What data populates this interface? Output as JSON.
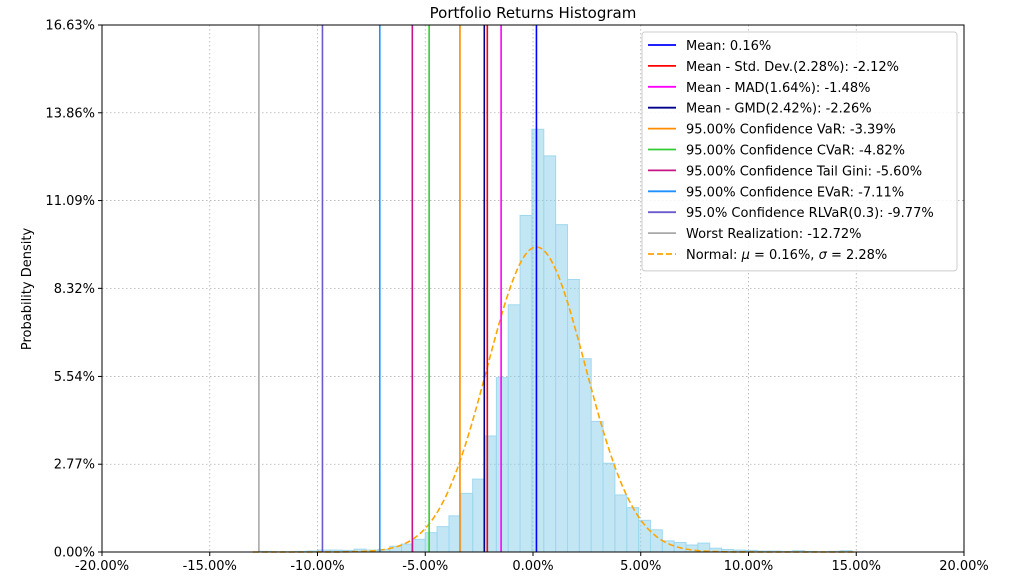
{
  "chart_data": {
    "type": "bar",
    "title": "Portfolio Returns Histogram",
    "xlabel": "",
    "ylabel": "Probability Density",
    "xlim": [
      -0.2,
      0.2
    ],
    "ylim": [
      0,
      0.1663
    ],
    "grid": true,
    "legend_position": "top-right",
    "x_ticks": [
      -0.2,
      -0.15,
      -0.1,
      -0.05,
      0.0,
      0.05,
      0.1,
      0.15,
      0.2
    ],
    "x_tick_labels": [
      "-20.00%",
      "-15.00%",
      "-10.00%",
      "-5.00%",
      "0.00%",
      "5.00%",
      "10.00%",
      "15.00%",
      "20.00%"
    ],
    "y_ticks": [
      0,
      0.0277,
      0.0554,
      0.0832,
      0.1109,
      0.1386,
      0.1663
    ],
    "y_tick_labels": [
      "0.00%",
      "2.77%",
      "5.54%",
      "8.32%",
      "11.09%",
      "13.86%",
      "16.63%"
    ],
    "histogram": {
      "color": "#87ceeb",
      "edge_color": "#9fd8ee",
      "bin_width": 0.0055,
      "bin_starts": [
        -0.127,
        -0.1215,
        -0.116,
        -0.1105,
        -0.105,
        -0.0995,
        -0.094,
        -0.0885,
        -0.083,
        -0.0775,
        -0.072,
        -0.0665,
        -0.061,
        -0.0555,
        -0.05,
        -0.0445,
        -0.039,
        -0.0335,
        -0.028,
        -0.0225,
        -0.017,
        -0.0115,
        -0.006,
        -0.0005,
        0.005,
        0.0105,
        0.016,
        0.0215,
        0.027,
        0.0325,
        0.038,
        0.0435,
        0.049,
        0.0545,
        0.06,
        0.0655,
        0.071,
        0.0765,
        0.082,
        0.0875,
        0.093,
        0.0985,
        0.104,
        0.1095,
        0.115,
        0.1205,
        0.126,
        0.1315,
        0.137,
        0.1425
      ],
      "densities": [
        0.0002,
        0.0001,
        0.0001,
        0.0002,
        0.0003,
        0.0006,
        0.0006,
        0.0005,
        0.0009,
        0.0006,
        0.0008,
        0.0018,
        0.0025,
        0.004,
        0.0061,
        0.008,
        0.0114,
        0.0185,
        0.023,
        0.0366,
        0.055,
        0.078,
        0.1062,
        0.1334,
        0.125,
        0.1033,
        0.086,
        0.061,
        0.0412,
        0.028,
        0.018,
        0.014,
        0.01,
        0.007,
        0.0035,
        0.003,
        0.0022,
        0.0028,
        0.0012,
        0.0008,
        0.0006,
        0.0005,
        0.0003,
        0.0003,
        0.0002,
        0.0004,
        0.0002,
        0.0001,
        0.0002,
        0.0004
      ]
    },
    "normal_fit": {
      "mean": 0.0016,
      "std": 0.0228,
      "color": "#ffa500"
    },
    "vlines": [
      {
        "name": "Mean: 0.16%",
        "x": 0.0016,
        "color": "#0000ff"
      },
      {
        "name": "Mean - Std. Dev.(2.28%): -2.12%",
        "x": -0.0212,
        "color": "#ff0000"
      },
      {
        "name": "Mean - MAD(1.64%): -1.48%",
        "x": -0.0148,
        "color": "#ff00ff"
      },
      {
        "name": "Mean - GMD(2.42%): -2.26%",
        "x": -0.0226,
        "color": "#00008b"
      },
      {
        "name": "95.00% Confidence VaR: -3.39%",
        "x": -0.0339,
        "color": "#ff8c00"
      },
      {
        "name": "95.00% Confidence CVaR: -4.82%",
        "x": -0.0482,
        "color": "#32cd32"
      },
      {
        "name": "95.00% Confidence Tail Gini: -5.60%",
        "x": -0.056,
        "color": "#c71585"
      },
      {
        "name": "95.00% Confidence EVaR: -7.11%",
        "x": -0.0711,
        "color": "#1e90ff"
      },
      {
        "name": "95.0% Confidence RLVaR(0.3): -9.77%",
        "x": -0.0977,
        "color": "#6a5acd"
      },
      {
        "name": "Worst Realization: -12.72%",
        "x": -0.1272,
        "color": "#a9a9a9"
      }
    ],
    "normal_legend": {
      "prefix": "Normal: ",
      "mu_symbol": "μ",
      "mu_text": " = 0.16%, ",
      "sigma_symbol": "σ",
      "sigma_text": " = 2.28%"
    }
  }
}
